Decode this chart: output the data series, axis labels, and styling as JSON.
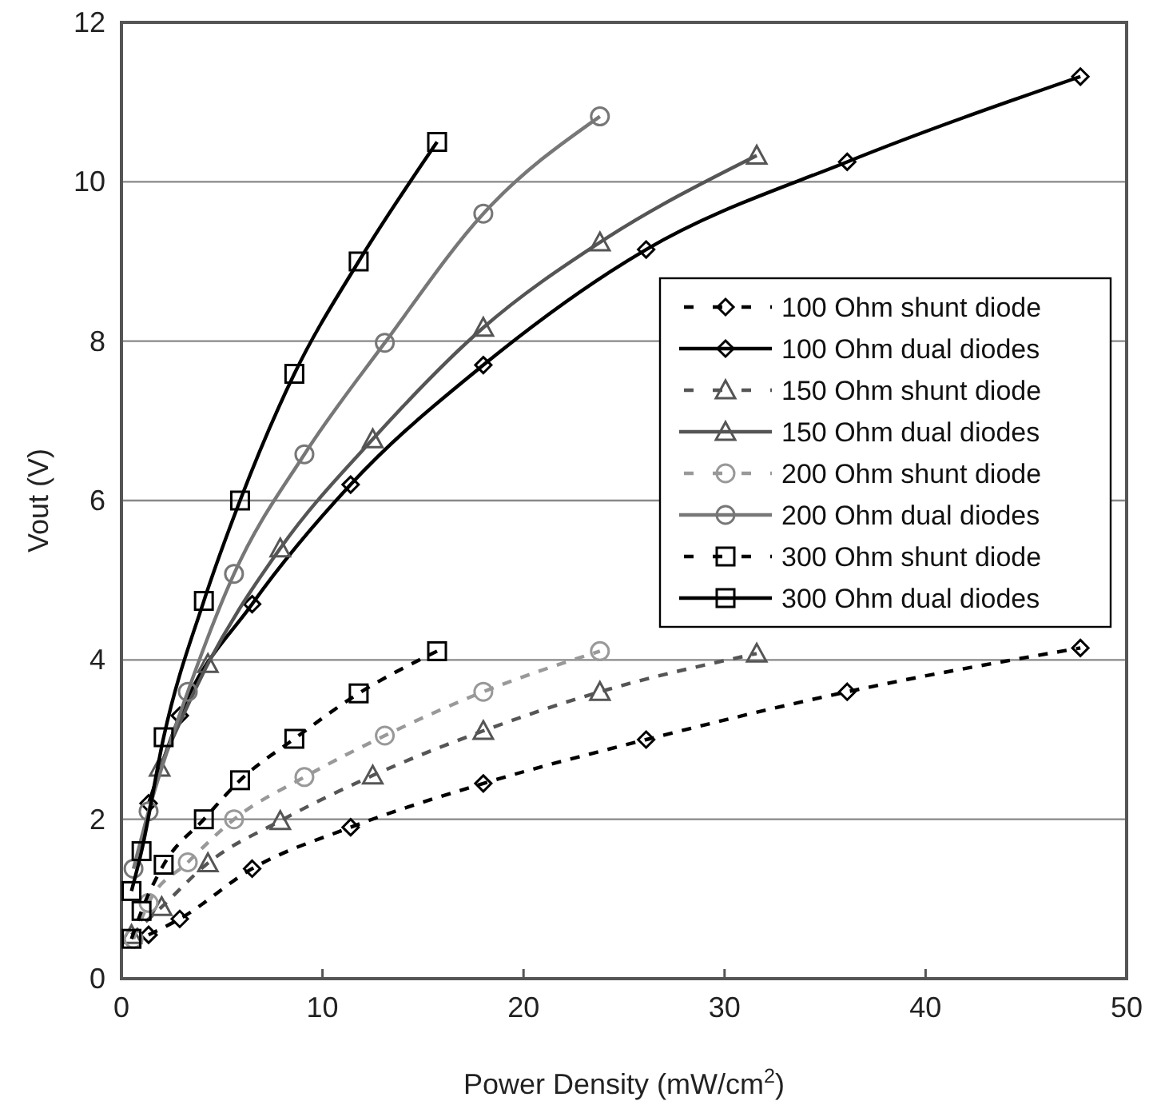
{
  "chart_data": {
    "type": "line",
    "xlabel": "Power Density (mW/cm$^{2}$)",
    "ylabel": "Vout (V)",
    "xlim": [
      0,
      50
    ],
    "xticks": [
      0,
      10,
      20,
      30,
      40,
      50
    ],
    "ylim": [
      0,
      12
    ],
    "yticks": [
      0,
      2,
      4,
      6,
      8,
      10,
      12
    ],
    "grid": "y",
    "legend": "right",
    "series": [
      {
        "name": "100 Ohm shunt diode",
        "color": "#000000",
        "marker": "diamond",
        "line_style": "dashed",
        "x": [
          1.35,
          2.9,
          6.5,
          11.4,
          18.0,
          26.1,
          36.1,
          47.7
        ],
        "values": [
          0.55,
          0.75,
          1.38,
          1.9,
          2.45,
          3.0,
          3.6,
          4.15
        ]
      },
      {
        "name": "100 Ohm dual diodes",
        "color": "#000000",
        "marker": "diamond",
        "line_style": "solid",
        "x": [
          1.35,
          2.9,
          6.5,
          11.4,
          18.0,
          26.1,
          36.1,
          47.7
        ],
        "values": [
          2.2,
          3.3,
          4.7,
          6.2,
          7.7,
          9.15,
          10.25,
          11.32
        ]
      },
      {
        "name": "150 Ohm shunt diode",
        "color": "#555555",
        "marker": "triangle",
        "line_style": "dashed",
        "x": [
          0.5,
          2.0,
          4.3,
          7.9,
          12.5,
          18.0,
          23.8,
          31.6
        ],
        "values": [
          0.55,
          0.9,
          1.45,
          1.98,
          2.55,
          3.11,
          3.6,
          4.08
        ]
      },
      {
        "name": "150 Ohm dual diodes",
        "color": "#555555",
        "marker": "triangle",
        "line_style": "solid",
        "x": [
          1.9,
          4.3,
          7.9,
          12.5,
          18.0,
          23.8,
          31.6
        ],
        "values": [
          2.65,
          3.95,
          5.4,
          6.77,
          8.17,
          9.24,
          10.33
        ]
      },
      {
        "name": "200 Ohm shunt diode",
        "color": "#999999",
        "marker": "circle",
        "line_style": "dashed",
        "x": [
          0.6,
          1.35,
          3.3,
          5.6,
          9.1,
          13.1,
          18.0,
          23.8
        ],
        "values": [
          0.5,
          0.95,
          1.46,
          2.0,
          2.53,
          3.05,
          3.6,
          4.11
        ]
      },
      {
        "name": "200 Ohm dual diodes",
        "color": "#777777",
        "marker": "circle",
        "line_style": "solid",
        "x": [
          0.6,
          1.35,
          3.3,
          5.6,
          9.1,
          13.1,
          18.0,
          23.8
        ],
        "values": [
          1.38,
          2.1,
          3.6,
          5.08,
          6.58,
          7.98,
          9.6,
          10.82
        ]
      },
      {
        "name": "300 Ohm shunt diode",
        "color": "#000000",
        "marker": "square",
        "line_style": "dashed",
        "x": [
          0.5,
          1.0,
          2.1,
          4.1,
          5.9,
          8.6,
          11.8,
          15.7
        ],
        "values": [
          0.5,
          0.85,
          1.43,
          2.0,
          2.49,
          3.01,
          3.58,
          4.11
        ]
      },
      {
        "name": "300 Ohm dual diodes",
        "color": "#000000",
        "marker": "square",
        "line_style": "solid",
        "x": [
          0.5,
          1.0,
          2.1,
          4.1,
          5.9,
          8.6,
          11.8,
          15.7
        ],
        "values": [
          1.1,
          1.6,
          3.03,
          4.74,
          6.0,
          7.59,
          9.0,
          10.5
        ]
      }
    ]
  }
}
